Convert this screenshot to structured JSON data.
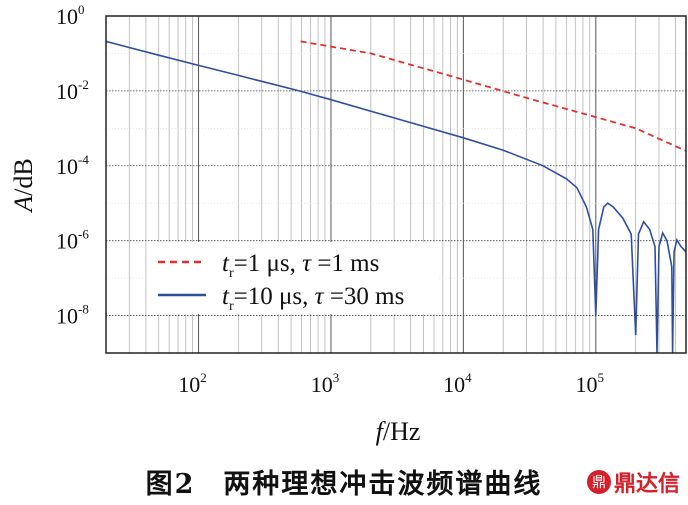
{
  "chart_data": {
    "type": "line",
    "title": "",
    "xlabel": {
      "var": "f",
      "unit": "/Hz"
    },
    "ylabel": {
      "var": "A",
      "unit": "/dB"
    },
    "xscale": "log",
    "yscale": "log",
    "xlim": [
      20,
      480000
    ],
    "ylim": [
      1e-09,
      1
    ],
    "xticks": [
      {
        "base": "10",
        "exp": "2",
        "value": 100
      },
      {
        "base": "10",
        "exp": "3",
        "value": 1000
      },
      {
        "base": "10",
        "exp": "4",
        "value": 10000
      },
      {
        "base": "10",
        "exp": "5",
        "value": 100000
      }
    ],
    "yticks": [
      {
        "base": "10",
        "exp": "0",
        "value": 1
      },
      {
        "base": "10",
        "exp": "-2",
        "value": 0.01
      },
      {
        "base": "10",
        "exp": "-4",
        "value": 0.0001
      },
      {
        "base": "10",
        "exp": "-6",
        "value": 1e-06
      },
      {
        "base": "10",
        "exp": "-8",
        "value": 1e-08
      }
    ],
    "grid": true,
    "legend_placement": "bottom-left",
    "series": [
      {
        "name": "tr=1 μs, τ=1 ms",
        "label_parts": {
          "var": "t",
          "sub": "r",
          "mid": "=1 μs,",
          "tau": "τ",
          "end": "=1 ms"
        },
        "color": "#e0312f",
        "style": "dashed",
        "points": [
          [
            590,
            0.21
          ],
          [
            2000,
            0.1
          ],
          [
            10000,
            0.02
          ],
          [
            30000,
            0.0065
          ],
          [
            100000,
            0.002
          ],
          [
            200000,
            0.001
          ],
          [
            480000,
            0.00025
          ]
        ]
      },
      {
        "name": "tr=10 μs, τ=30 ms",
        "label_parts": {
          "var": "t",
          "sub": "r",
          "mid": "=10 μs,",
          "tau": "τ",
          "end": "=30 ms"
        },
        "color": "#2f4f9e",
        "style": "solid",
        "points": [
          [
            20,
            0.21
          ],
          [
            50,
            0.09
          ],
          [
            100,
            0.048
          ],
          [
            200,
            0.026
          ],
          [
            575,
            0.01
          ],
          [
            1000,
            0.0058
          ],
          [
            3000,
            0.0019
          ],
          [
            10000,
            0.00056
          ],
          [
            20000,
            0.00026
          ],
          [
            40000,
            0.0001
          ],
          [
            60000,
            4.5e-05
          ],
          [
            72000,
            2.6e-05
          ],
          [
            85000,
            8e-06
          ],
          [
            95000,
            2e-06
          ],
          [
            100000,
            1e-08
          ],
          [
            105000,
            2e-06
          ],
          [
            115000,
            8e-06
          ],
          [
            123000,
            1e-05
          ],
          [
            135000,
            8e-06
          ],
          [
            160000,
            4e-06
          ],
          [
            185000,
            1.5e-06
          ],
          [
            200000,
            3e-09
          ],
          [
            210000,
            1.5e-06
          ],
          [
            230000,
            3.2e-06
          ],
          [
            255000,
            2e-06
          ],
          [
            280000,
            7e-07
          ],
          [
            290000,
            1e-09
          ],
          [
            300000,
            7e-07
          ],
          [
            320000,
            1.6e-06
          ],
          [
            345000,
            1e-06
          ],
          [
            375000,
            2e-07
          ],
          [
            380000,
            1e-09
          ],
          [
            390000,
            5e-07
          ],
          [
            410000,
            1.05e-06
          ],
          [
            440000,
            7e-07
          ],
          [
            480000,
            5e-07
          ]
        ]
      }
    ]
  },
  "caption": {
    "figure_no": "图2",
    "text": "两种理想冲击波频谱曲线"
  },
  "watermark": {
    "logo_mark": "鼎",
    "text": "鼎达信"
  }
}
